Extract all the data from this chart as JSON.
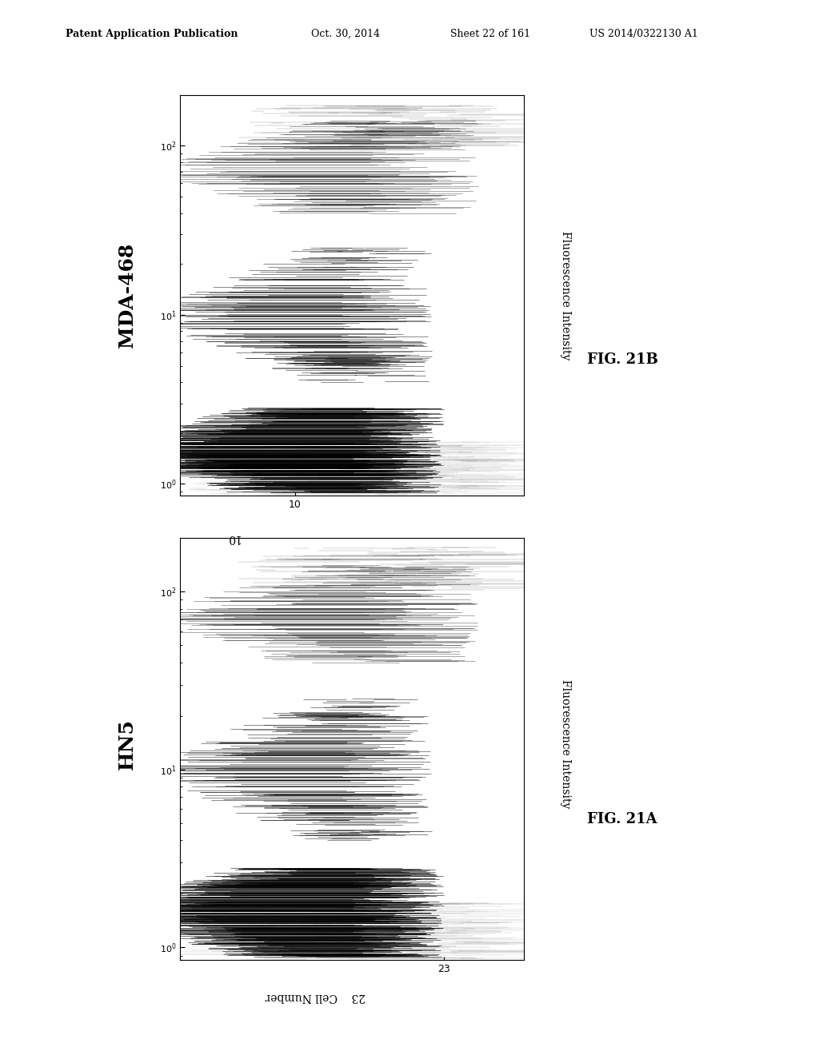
{
  "title_header": "Patent Application Publication",
  "date_header": "Oct. 30, 2014",
  "sheet_header": "Sheet 22 of 161",
  "patent_header": "US 2014/0322130 A1",
  "background_color": "#ffffff",
  "panel_A_label": "FIG. 21A",
  "panel_B_label": "FIG. 21B",
  "panel_A_title": "HN5",
  "panel_B_title": "MDA-468",
  "x_axis_label": "Cell Number",
  "x_axis_tick": "23",
  "x_axis_tick_B": "10",
  "y_axis_label": "Fluorescence Intensity",
  "y_ticks": [
    "10^0",
    "10^1",
    "10^2"
  ],
  "y_tick_vals": [
    1,
    10,
    100
  ]
}
